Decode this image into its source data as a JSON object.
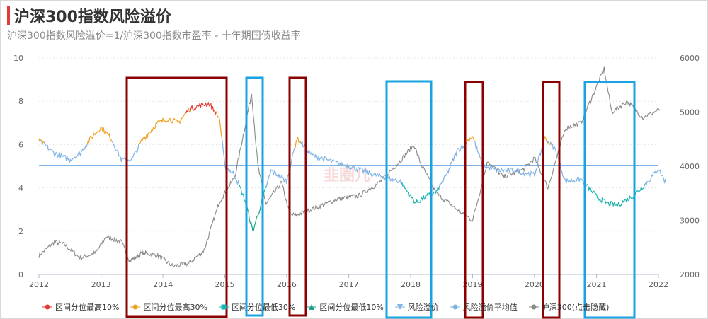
{
  "title": "沪深300指数风险溢价",
  "subtitle": "沪深300指数风险溢价=1/沪深300指数市盈率 - 十年期国债收益率",
  "watermark": "韭圈儿",
  "colors": {
    "top10": "#e53935",
    "top30": "#f0a020",
    "low30": "#18b4b4",
    "low10": "#17a589",
    "premium": "#7fb3e6",
    "mean": "#7fb3e6",
    "hs300": "#888888",
    "dark_box": "#8b0000",
    "light_box": "#1aa3e0"
  },
  "chart_data": {
    "type": "line",
    "x_ticks": [
      "2012",
      "2013",
      "2014",
      "2015",
      "2016",
      "2017",
      "2018",
      "2019",
      "2020",
      "2021",
      "2022"
    ],
    "y_left_ticks": [
      "0",
      "2",
      "4",
      "6",
      "8",
      "10"
    ],
    "y_right_ticks": [
      "2000",
      "3000",
      "4000",
      "5000",
      "6000"
    ],
    "ylim_left": [
      0,
      10
    ],
    "ylim_right": [
      2000,
      6000
    ],
    "grid": true,
    "legend_position": "bottom",
    "mean_value": 5.05,
    "series": [
      {
        "name": "区间分位最高10%",
        "style": "dot",
        "color": "#e53935"
      },
      {
        "name": "区间分位最高30%",
        "style": "dot",
        "color": "#f0a020"
      },
      {
        "name": "区间分位最低30%",
        "style": "square",
        "color": "#18b4b4"
      },
      {
        "name": "区间分位最低10%",
        "style": "triangle",
        "color": "#17a589"
      },
      {
        "name": "风险溢价",
        "style": "tri-down",
        "color": "#7fb3e6"
      },
      {
        "name": "风险溢价平均值",
        "style": "dot",
        "color": "#7fb3e6"
      },
      {
        "name": "沪深300(点击隐藏)",
        "style": "dot",
        "color": "#888888"
      }
    ],
    "premium_keypoints": [
      [
        "2012-01-01",
        6.2
      ],
      [
        "2012-04-01",
        5.6
      ],
      [
        "2012-07-01",
        5.3
      ],
      [
        "2012-09-01",
        5.6
      ],
      [
        "2012-11-01",
        6.3
      ],
      [
        "2013-01-01",
        6.8
      ],
      [
        "2013-03-01",
        6.3
      ],
      [
        "2013-05-01",
        5.3
      ],
      [
        "2013-07-01",
        5.3
      ],
      [
        "2013-09-01",
        6.2
      ],
      [
        "2013-12-01",
        7.0
      ],
      [
        "2014-02-01",
        7.2
      ],
      [
        "2014-04-01",
        7.0
      ],
      [
        "2014-06-01",
        7.6
      ],
      [
        "2014-08-01",
        7.8
      ],
      [
        "2014-10-01",
        7.9
      ],
      [
        "2014-12-01",
        7.2
      ],
      [
        "2015-01-01",
        5.0
      ],
      [
        "2015-03-01",
        4.6
      ],
      [
        "2015-05-01",
        3.4
      ],
      [
        "2015-06-15",
        2.0
      ],
      [
        "2015-08-01",
        3.2
      ],
      [
        "2015-10-01",
        4.8
      ],
      [
        "2016-01-01",
        4.3
      ],
      [
        "2016-03-01",
        6.3
      ],
      [
        "2016-06-01",
        5.5
      ],
      [
        "2016-10-01",
        5.2
      ],
      [
        "2017-01-01",
        5.0
      ],
      [
        "2017-06-01",
        4.6
      ],
      [
        "2017-11-01",
        4.3
      ],
      [
        "2018-01-01",
        3.6
      ],
      [
        "2018-02-01",
        3.3
      ],
      [
        "2018-04-01",
        3.6
      ],
      [
        "2018-06-01",
        3.8
      ],
      [
        "2018-08-01",
        4.6
      ],
      [
        "2018-10-01",
        5.7
      ],
      [
        "2019-01-01",
        6.4
      ],
      [
        "2019-03-01",
        5.0
      ],
      [
        "2019-06-01",
        4.8
      ],
      [
        "2019-09-01",
        4.8
      ],
      [
        "2020-01-01",
        4.6
      ],
      [
        "2020-03-01",
        6.3
      ],
      [
        "2020-05-01",
        5.8
      ],
      [
        "2020-07-01",
        4.3
      ],
      [
        "2020-10-01",
        4.4
      ],
      [
        "2021-01-01",
        3.6
      ],
      [
        "2021-03-01",
        3.3
      ],
      [
        "2021-05-01",
        3.2
      ],
      [
        "2021-08-01",
        3.6
      ],
      [
        "2021-11-01",
        4.3
      ],
      [
        "2022-01-01",
        4.9
      ],
      [
        "2022-02-15",
        4.2
      ]
    ],
    "hs300_keypoints": [
      [
        "2012-01-01",
        2350
      ],
      [
        "2012-04-01",
        2600
      ],
      [
        "2012-06-01",
        2550
      ],
      [
        "2012-09-01",
        2300
      ],
      [
        "2012-12-01",
        2400
      ],
      [
        "2013-02-01",
        2700
      ],
      [
        "2013-05-01",
        2600
      ],
      [
        "2013-06-20",
        2250
      ],
      [
        "2013-09-01",
        2400
      ],
      [
        "2013-12-01",
        2350
      ],
      [
        "2014-03-01",
        2150
      ],
      [
        "2014-06-01",
        2200
      ],
      [
        "2014-09-01",
        2450
      ],
      [
        "2014-12-01",
        3350
      ],
      [
        "2015-03-01",
        3800
      ],
      [
        "2015-06-08",
        5350
      ],
      [
        "2015-07-15",
        4000
      ],
      [
        "2015-09-01",
        3300
      ],
      [
        "2015-12-01",
        3700
      ],
      [
        "2016-01-20",
        3100
      ],
      [
        "2016-03-01",
        3100
      ],
      [
        "2016-07-01",
        3250
      ],
      [
        "2016-11-01",
        3400
      ],
      [
        "2017-03-01",
        3450
      ],
      [
        "2017-07-01",
        3700
      ],
      [
        "2017-11-01",
        4100
      ],
      [
        "2018-01-20",
        4400
      ],
      [
        "2018-03-01",
        4050
      ],
      [
        "2018-06-01",
        3500
      ],
      [
        "2018-10-01",
        3200
      ],
      [
        "2019-01-01",
        3000
      ],
      [
        "2019-04-01",
        4100
      ],
      [
        "2019-07-01",
        3800
      ],
      [
        "2019-11-01",
        3950
      ],
      [
        "2020-01-01",
        4150
      ],
      [
        "2020-03-20",
        3600
      ],
      [
        "2020-07-01",
        4700
      ],
      [
        "2020-10-01",
        4800
      ],
      [
        "2021-02-15",
        5800
      ],
      [
        "2021-04-01",
        5000
      ],
      [
        "2021-07-01",
        5200
      ],
      [
        "2021-10-01",
        4900
      ],
      [
        "2022-01-10",
        5050
      ]
    ]
  }
}
